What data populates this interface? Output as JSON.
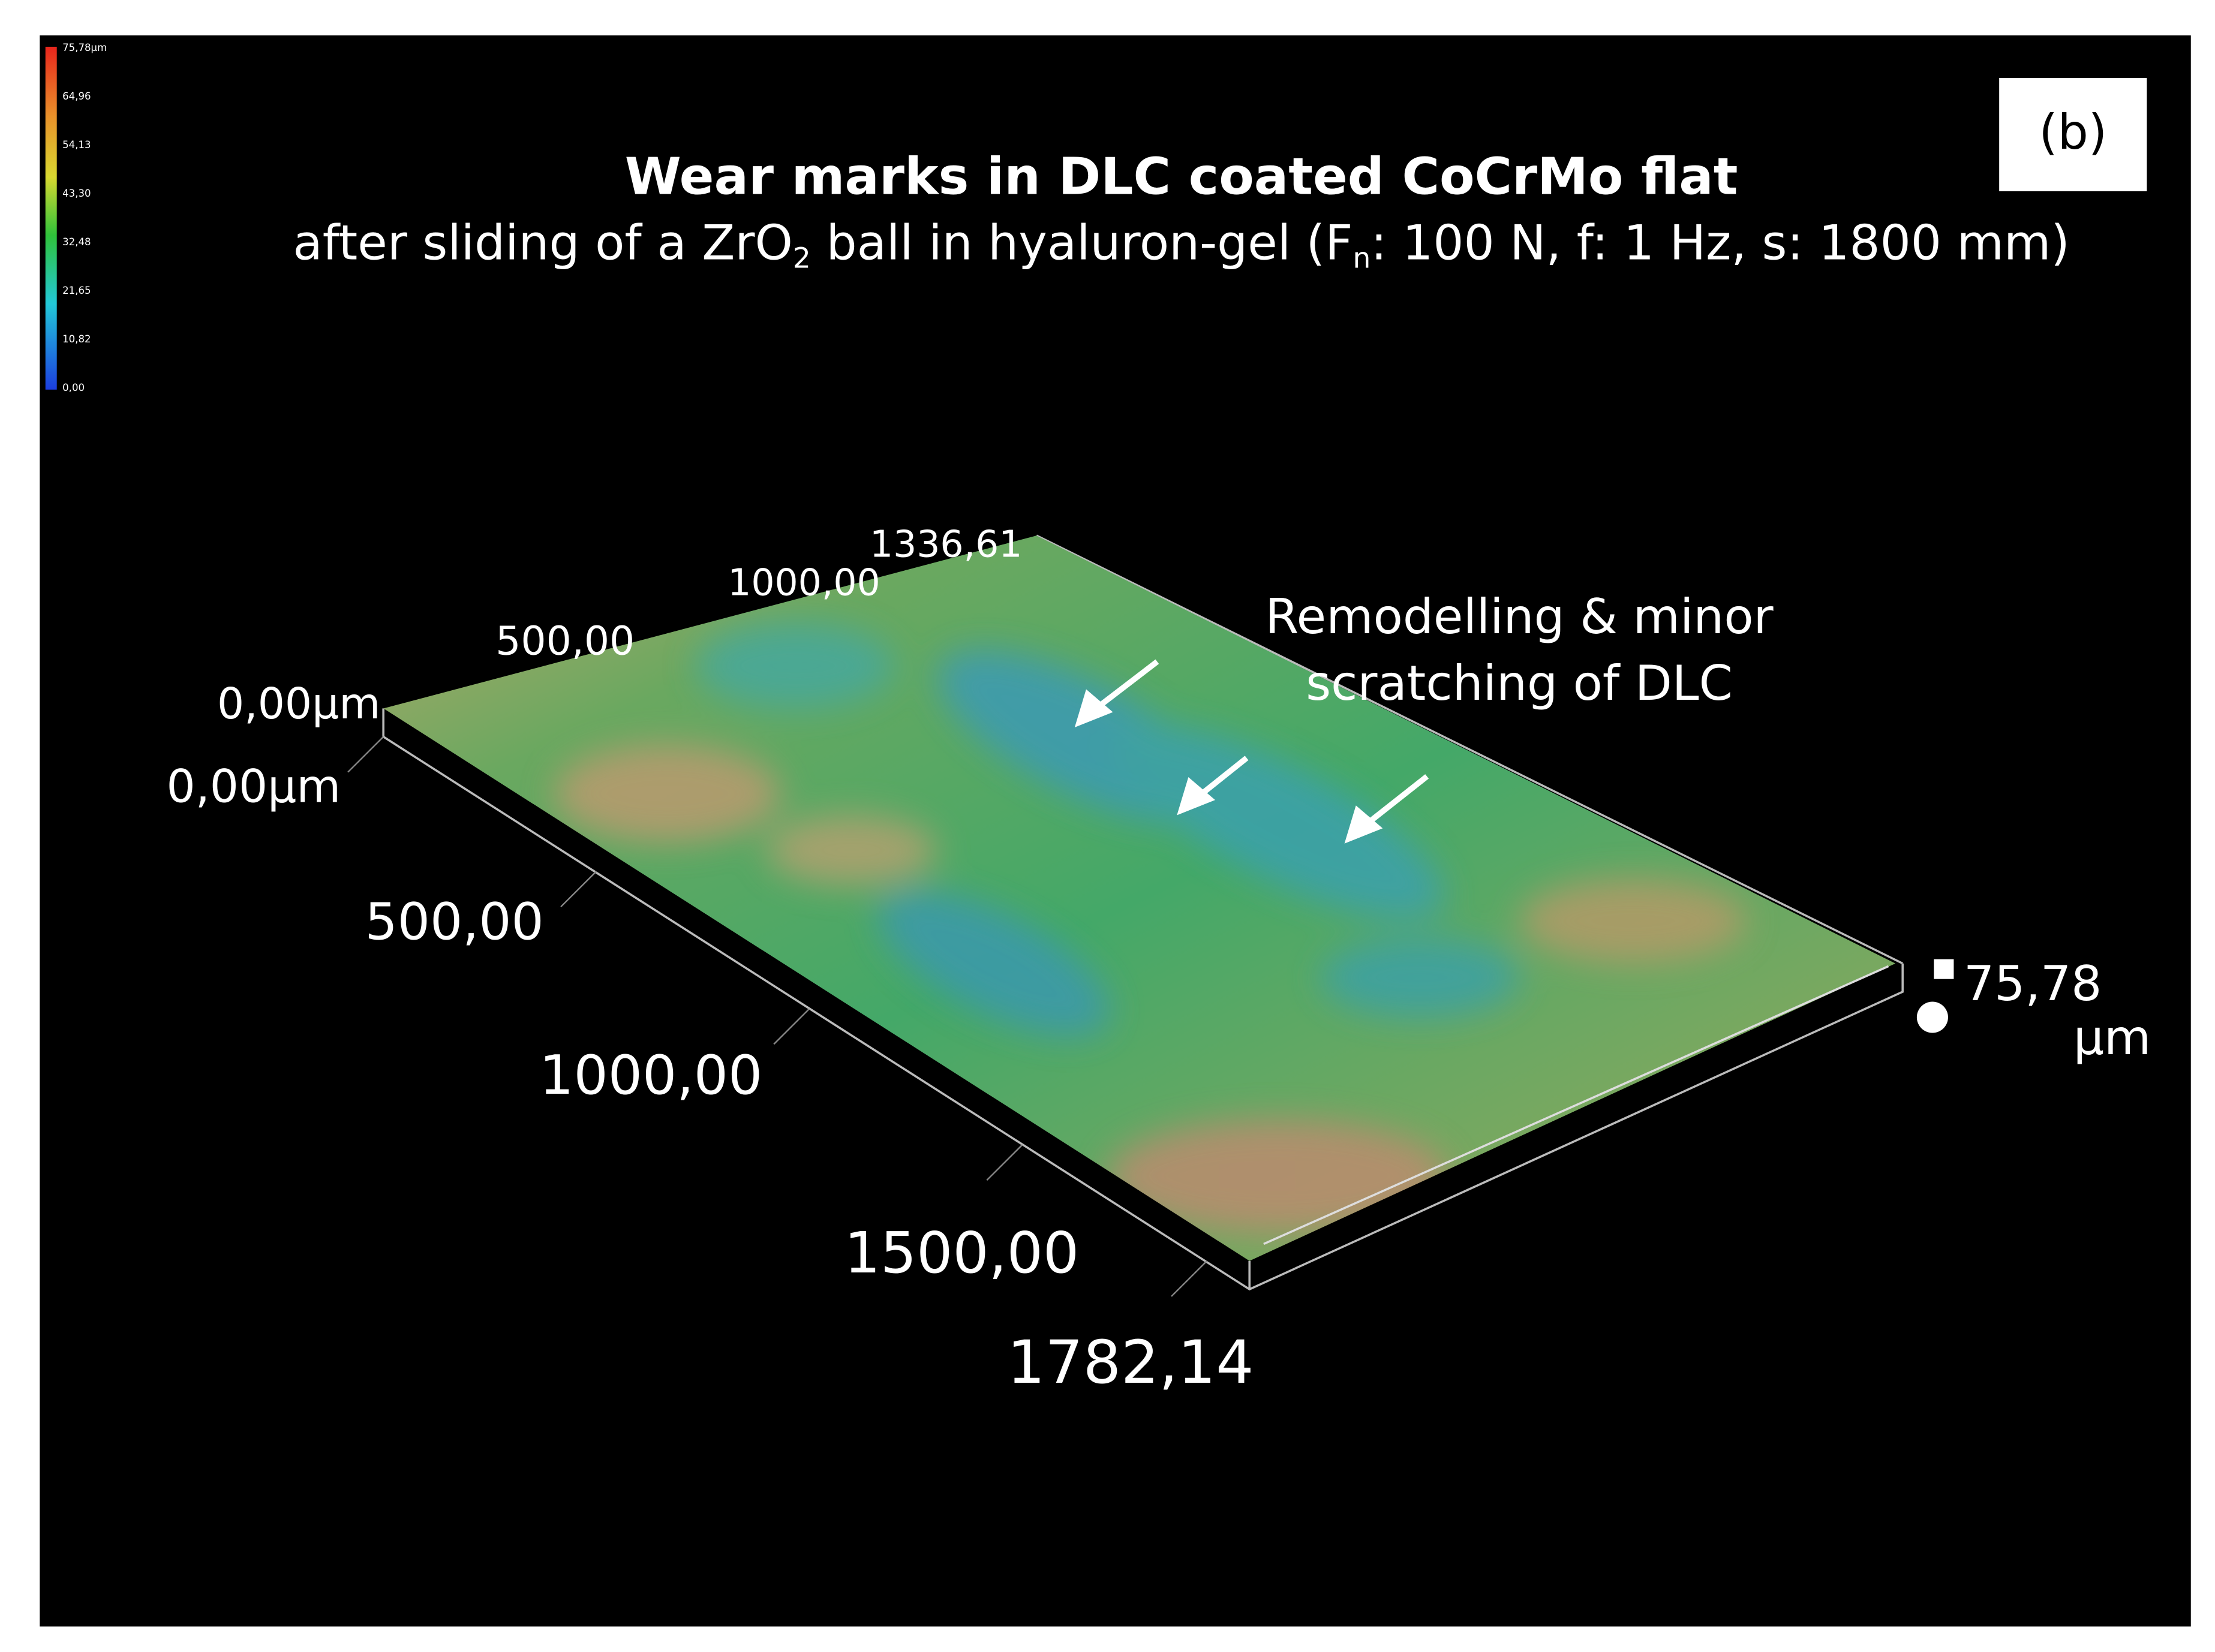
{
  "panel_label": "(b)",
  "title": "Wear marks in DLC coated CoCrMo flat",
  "subtitle": [
    "after sliding of a ZrO",
    "2",
    " ball in hyaluron-gel (F",
    "n",
    ": 100 N, f: 1 Hz, s: 1800 mm)"
  ],
  "colorbar_labels": [
    "75,78µm",
    "64,96",
    "54,13",
    "43,30",
    "32,48",
    "21,65",
    "10,82",
    "0,00"
  ],
  "back_axis_labels": [
    "0,00µm",
    "500,00",
    "1000,00",
    "1336,61"
  ],
  "front_axis_labels": [
    "0,00µm",
    "500,00",
    "1000,00",
    "1500,00",
    "1782,14"
  ],
  "height_label": [
    "75,78",
    "µm"
  ],
  "annotation": [
    "Remodelling & minor",
    "scratching of DLC"
  ]
}
